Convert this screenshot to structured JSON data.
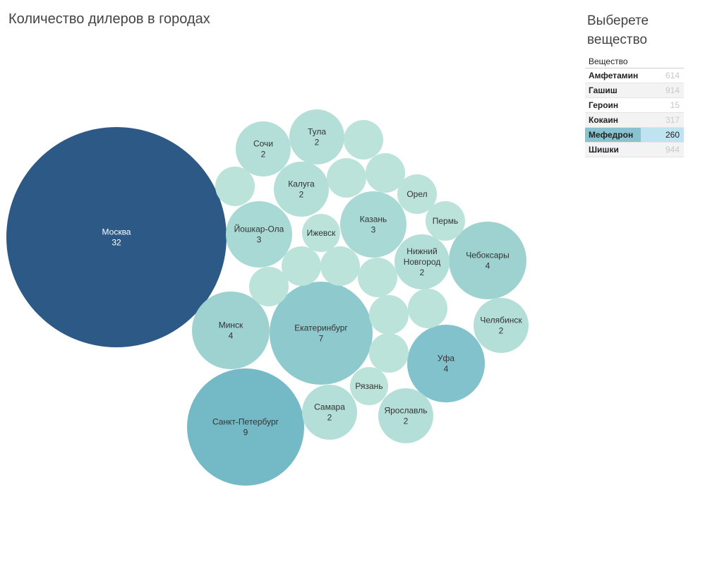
{
  "title": "Количество дилеров в городах",
  "filter": {
    "title": "Выберете\nвещество",
    "header": "Вещество",
    "items": [
      {
        "name": "Амфетамин",
        "count": "614",
        "selected": false
      },
      {
        "name": "Гашиш",
        "count": "914",
        "selected": false
      },
      {
        "name": "Героин",
        "count": "15",
        "selected": false
      },
      {
        "name": "Кокаин",
        "count": "317",
        "selected": false
      },
      {
        "name": "Мефедрон",
        "count": "260",
        "selected": true
      },
      {
        "name": "Шишки",
        "count": "944",
        "selected": false
      }
    ]
  },
  "colors": {
    "max": "#2d5986",
    "scale": [
      "#b9e2d8",
      "#b0dcd7",
      "#9ed3d2",
      "#8cc8ce",
      "#82c2cc",
      "#74b9c6"
    ]
  },
  "chart_data": {
    "type": "packed-bubble",
    "measure": "Количество дилеров",
    "bubbles": [
      {
        "city": "Москва",
        "value": 32
      },
      {
        "city": "Санкт-Петербург",
        "value": 9
      },
      {
        "city": "Екатеринбург",
        "value": 7
      },
      {
        "city": "Минск",
        "value": 4
      },
      {
        "city": "Чебоксары",
        "value": 4
      },
      {
        "city": "Уфа",
        "value": 4
      },
      {
        "city": "Йошкар-Ола",
        "value": 3
      },
      {
        "city": "Казань",
        "value": 3
      },
      {
        "city": "Тула",
        "value": 2
      },
      {
        "city": "Сочи",
        "value": 2
      },
      {
        "city": "Калуга",
        "value": 2
      },
      {
        "city": "Челябинск",
        "value": 2
      },
      {
        "city": "Самара",
        "value": 2
      },
      {
        "city": "Ярославль",
        "value": 2
      },
      {
        "city": "Нижний Новгород",
        "value": 2
      },
      {
        "city": "Ижевск",
        "value": 1
      },
      {
        "city": "Пермь",
        "value": 1
      },
      {
        "city": "Орел",
        "value": 1
      },
      {
        "city": "Рязань",
        "value": 1
      },
      {
        "city": "",
        "value": 1
      },
      {
        "city": "",
        "value": 1
      },
      {
        "city": "",
        "value": 1
      },
      {
        "city": "",
        "value": 1
      },
      {
        "city": "",
        "value": 1
      },
      {
        "city": "",
        "value": 1
      },
      {
        "city": "",
        "value": 1
      },
      {
        "city": "",
        "value": 1
      },
      {
        "city": "",
        "value": 1
      },
      {
        "city": "",
        "value": 1
      },
      {
        "city": "",
        "value": 1
      },
      {
        "city": "",
        "value": 1
      }
    ]
  }
}
